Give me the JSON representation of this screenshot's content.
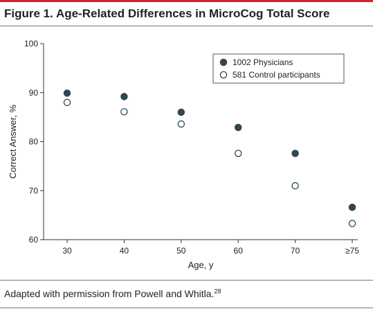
{
  "figure": {
    "title": "Figure 1. Age-Related Differences in MicroCog Total Score",
    "caption": "Adapted with permission from Powell and Whitla.",
    "caption_ref": "28"
  },
  "chart_data": {
    "type": "scatter",
    "xlabel": "Age, y",
    "ylabel": "Correct Answer, %",
    "categories": [
      "30",
      "40",
      "50",
      "60",
      "70",
      "≥75"
    ],
    "ylim": [
      60,
      100
    ],
    "yticks": [
      "60",
      "70",
      "80",
      "90",
      "100"
    ],
    "grid": false,
    "legend_position": "top-right",
    "series": [
      {
        "name": "1002 Physicians",
        "marker": "filled",
        "color": "#2f4750",
        "values": [
          89.9,
          89.2,
          86.0,
          82.9,
          77.6,
          66.6
        ]
      },
      {
        "name": "581 Control participants",
        "marker": "open",
        "color": "#2f4750",
        "values": [
          88.0,
          86.1,
          83.6,
          77.6,
          71.0,
          63.3
        ]
      }
    ]
  }
}
